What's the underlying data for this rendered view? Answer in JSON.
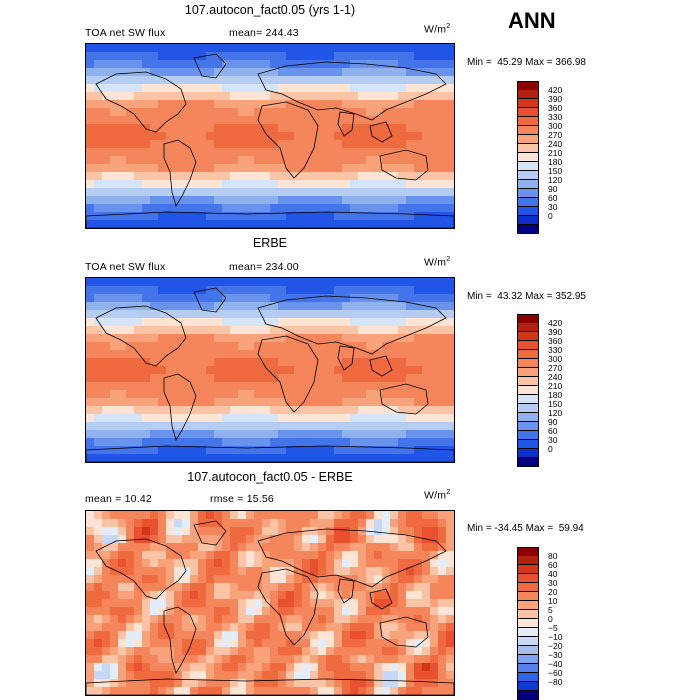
{
  "season": "ANN",
  "panels": [
    {
      "title": "107.autocon_fact0.05 (yrs 1-1)",
      "left_label": "TOA net SW flux",
      "mid_label": "mean= 244.43",
      "units": "W/m",
      "units_sup": "2",
      "minmax": "Min =  45.29 Max = 366.98",
      "colorbar_ticks": [
        "420",
        "390",
        "360",
        "330",
        "300",
        "270",
        "240",
        "210",
        "180",
        "150",
        "120",
        "90",
        "60",
        "30",
        "0"
      ],
      "colorbar_colors": [
        "#8b0000",
        "#b2200f",
        "#d4361a",
        "#e85030",
        "#f06a40",
        "#f5855a",
        "#f9a37c",
        "#fbc4a6",
        "#fde4d4",
        "#d6e4f7",
        "#b5cdf2",
        "#8fb2ee",
        "#6993ec",
        "#4474ea",
        "#2055e8",
        "#0b2fc8",
        "#000080"
      ],
      "map_type": "absolute"
    },
    {
      "title": "ERBE",
      "left_label": "TOA net SW flux",
      "mid_label": "mean= 234.00",
      "units": "W/m",
      "units_sup": "2",
      "minmax": "Min =  43.32 Max = 352.95",
      "colorbar_ticks": [
        "420",
        "390",
        "360",
        "330",
        "300",
        "270",
        "240",
        "210",
        "180",
        "150",
        "120",
        "90",
        "60",
        "30",
        "0"
      ],
      "colorbar_colors": [
        "#8b0000",
        "#b2200f",
        "#d4361a",
        "#e85030",
        "#f06a40",
        "#f5855a",
        "#f9a37c",
        "#fbc4a6",
        "#fde4d4",
        "#d6e4f7",
        "#b5cdf2",
        "#8fb2ee",
        "#6993ec",
        "#4474ea",
        "#2055e8",
        "#0b2fc8",
        "#000080"
      ],
      "map_type": "absolute"
    },
    {
      "title": "107.autocon_fact0.05 - ERBE",
      "left_label": "mean =  10.42",
      "mid_label": "rmse =  15.56",
      "units": "W/m",
      "units_sup": "2",
      "minmax": "Min = -34.45 Max =  59.94",
      "colorbar_ticks": [
        "80",
        "60",
        "40",
        "30",
        "20",
        "10",
        "5",
        "0",
        "−5",
        "−10",
        "−20",
        "−30",
        "−40",
        "−60",
        "−80"
      ],
      "colorbar_colors": [
        "#8b0000",
        "#b2200f",
        "#d4361a",
        "#e85030",
        "#f06a40",
        "#f5855a",
        "#f9a37c",
        "#fbc4a6",
        "#fde4d4",
        "#e3ecf9",
        "#c6d8f4",
        "#a3c0f0",
        "#7ea2ed",
        "#5583ea",
        "#2f63e7",
        "#0d3ad0",
        "#000080"
      ],
      "map_type": "difference"
    }
  ]
}
